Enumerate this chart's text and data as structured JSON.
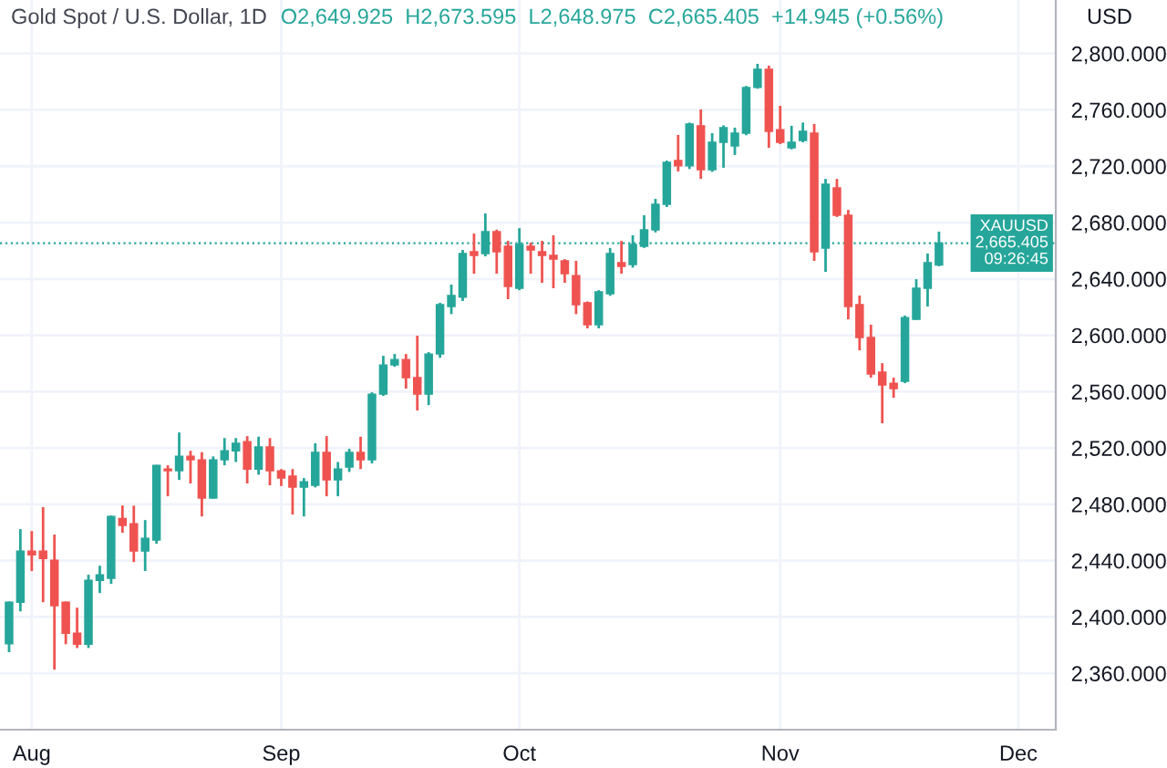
{
  "chart_data": {
    "type": "candlestick",
    "title": "Gold Spot / U.S. Dollar, 1D",
    "subtitle": "O2,649.925  H2,673.595  L2,648.975  C2,665.405  +14.945 (+0.56%)",
    "ylabel": "USD",
    "categories": [
      null,
      null,
      "Aug",
      null,
      null,
      null,
      null,
      null,
      null,
      null,
      null,
      null,
      null,
      null,
      null,
      null,
      null,
      null,
      null,
      null,
      null,
      null,
      null,
      null,
      "Sep",
      null,
      null,
      null,
      null,
      null,
      null,
      null,
      null,
      null,
      null,
      null,
      null,
      null,
      null,
      null,
      null,
      null,
      null,
      null,
      null,
      "Oct",
      null,
      null,
      null,
      null,
      null,
      null,
      null,
      null,
      null,
      null,
      null,
      null,
      null,
      null,
      null,
      null,
      null,
      null,
      null,
      null,
      null,
      null,
      "Nov",
      null,
      null,
      null,
      null,
      null,
      null,
      null,
      null,
      null,
      null,
      null,
      null,
      null,
      null,
      null,
      null,
      null,
      null,
      null,
      null,
      "Dec"
    ],
    "ohlc": [
      [
        2381,
        2411,
        2375,
        2410.5
      ],
      [
        2410.5,
        2462.4,
        2404,
        2446.8
      ],
      [
        2446.8,
        2461,
        2432.6,
        2444.2
      ],
      [
        2446.8,
        2478,
        2410.5,
        2441.6
      ],
      [
        2440.3,
        2458.5,
        2362.6,
        2408
      ],
      [
        2410.5,
        2411,
        2380.7,
        2388.5
      ],
      [
        2388.5,
        2406.6,
        2378,
        2380.7
      ],
      [
        2380.7,
        2430,
        2378,
        2426
      ],
      [
        2426,
        2436.4,
        2417,
        2430
      ],
      [
        2427.4,
        2472,
        2423.5,
        2471.4
      ],
      [
        2470,
        2479.2,
        2459.8,
        2465
      ],
      [
        2466.2,
        2479,
        2439,
        2446.8
      ],
      [
        2446.8,
        2468.8,
        2432.6,
        2455.9
      ],
      [
        2454.6,
        2508,
        2452,
        2507.7
      ],
      [
        2505.1,
        2507.7,
        2485.7,
        2503.8
      ],
      [
        2503.8,
        2531,
        2497.3,
        2514.2
      ],
      [
        2514.2,
        2518,
        2494.8,
        2511.6
      ],
      [
        2511.6,
        2517,
        2471.4,
        2484.4
      ],
      [
        2484.4,
        2514,
        2484,
        2511.6
      ],
      [
        2511.6,
        2527,
        2507.7,
        2518
      ],
      [
        2518,
        2527,
        2510,
        2523.3
      ],
      [
        2524.5,
        2528.4,
        2494.8,
        2505
      ],
      [
        2505,
        2528,
        2501,
        2520.7
      ],
      [
        2520.7,
        2527,
        2493.5,
        2503.8
      ],
      [
        2503.8,
        2505,
        2493,
        2498.6
      ],
      [
        2500,
        2505,
        2472.7,
        2492.2
      ],
      [
        2492.2,
        2498.6,
        2471.4,
        2496
      ],
      [
        2493.5,
        2523.3,
        2492,
        2516.8
      ],
      [
        2516.8,
        2528.4,
        2485.7,
        2497.3
      ],
      [
        2497.3,
        2510,
        2485.7,
        2505
      ],
      [
        2506.4,
        2519.4,
        2503,
        2516.8
      ],
      [
        2516.8,
        2528,
        2505,
        2511.6
      ],
      [
        2511.6,
        2559.5,
        2509,
        2558.2
      ],
      [
        2558.2,
        2585.4,
        2557,
        2578.9
      ],
      [
        2578.9,
        2586.7,
        2577.6,
        2582.8
      ],
      [
        2582.8,
        2586.7,
        2562.1,
        2569.9
      ],
      [
        2569.9,
        2599.7,
        2546.6,
        2558.2
      ],
      [
        2558.2,
        2588,
        2550.4,
        2586.7
      ],
      [
        2586.7,
        2623,
        2584,
        2621.7
      ],
      [
        2620.4,
        2636,
        2615,
        2628.2
      ],
      [
        2627,
        2660.6,
        2624.3,
        2658
      ],
      [
        2659.3,
        2672.2,
        2643.7,
        2656.7
      ],
      [
        2658,
        2686.5,
        2656,
        2673.5
      ],
      [
        2673.5,
        2675,
        2643.7,
        2659.3
      ],
      [
        2663.2,
        2667,
        2625.6,
        2634.7
      ],
      [
        2633.4,
        2676,
        2632,
        2664.5
      ],
      [
        2663.2,
        2665.8,
        2643.7,
        2660.6
      ],
      [
        2659.3,
        2667,
        2637.2,
        2656.7
      ],
      [
        2656.7,
        2671,
        2633.4,
        2654
      ],
      [
        2652.8,
        2654,
        2637.2,
        2643.7
      ],
      [
        2642.4,
        2652.8,
        2615,
        2621.7
      ],
      [
        2623,
        2624,
        2604.9,
        2607.5
      ],
      [
        2607.5,
        2632,
        2604.9,
        2630.8
      ],
      [
        2629.5,
        2662,
        2628,
        2658
      ],
      [
        2651.5,
        2667,
        2643.7,
        2648.9
      ],
      [
        2650.2,
        2671,
        2648,
        2664.5
      ],
      [
        2663.2,
        2685.2,
        2662,
        2674.8
      ],
      [
        2674.8,
        2696.8,
        2673,
        2693
      ],
      [
        2693,
        2724,
        2691,
        2722.8
      ],
      [
        2724,
        2742.2,
        2716.3,
        2720.2
      ],
      [
        2720.2,
        2751,
        2718,
        2750
      ],
      [
        2748.7,
        2760.3,
        2711,
        2717.6
      ],
      [
        2717.6,
        2743.5,
        2716,
        2737
      ],
      [
        2737,
        2749,
        2718.9,
        2747.4
      ],
      [
        2734.4,
        2747.4,
        2728,
        2743.5
      ],
      [
        2743.5,
        2777,
        2742,
        2775.9
      ],
      [
        2775.9,
        2792.7,
        2775,
        2788.8
      ],
      [
        2788.8,
        2791.4,
        2733.1,
        2744.8
      ],
      [
        2746,
        2762.9,
        2735.7,
        2737
      ],
      [
        2733,
        2748.7,
        2732,
        2737
      ],
      [
        2738.3,
        2751,
        2737,
        2744.8
      ],
      [
        2743.5,
        2750,
        2652.8,
        2659.3
      ],
      [
        2661.9,
        2711,
        2645,
        2707.2
      ],
      [
        2704.6,
        2711,
        2684,
        2685.2
      ],
      [
        2685.2,
        2689,
        2611.3,
        2620.4
      ],
      [
        2621.7,
        2628.2,
        2589.3,
        2598.4
      ],
      [
        2598.4,
        2607.5,
        2569.9,
        2572.5
      ],
      [
        2573.8,
        2580.2,
        2537.5,
        2564.7
      ],
      [
        2566,
        2569.9,
        2555.6,
        2562.1
      ],
      [
        2567.3,
        2614,
        2566,
        2612.6
      ],
      [
        2611.3,
        2639.8,
        2611,
        2633.4
      ],
      [
        2633.4,
        2658,
        2620.4,
        2651.5
      ],
      [
        2649.925,
        2673.595,
        2648.975,
        2665.405
      ],
      null,
      null,
      null,
      null,
      null,
      null,
      null
    ],
    "colors": [
      "#26a69a",
      "#26a69a",
      "#ef5350",
      "#ef5350",
      "#ef5350",
      "#ef5350",
      "#ef5350",
      "#26a69a",
      "#26a69a",
      "#26a69a",
      "#ef5350",
      "#ef5350",
      "#26a69a",
      "#26a69a",
      "#ef5350",
      "#26a69a",
      "#ef5350",
      "#ef5350",
      "#26a69a",
      "#26a69a",
      "#26a69a",
      "#ef5350",
      "#26a69a",
      "#ef5350",
      "#ef5350",
      "#ef5350",
      "#26a69a",
      "#26a69a",
      "#ef5350",
      "#26a69a",
      "#26a69a",
      "#ef5350",
      "#26a69a",
      "#26a69a",
      "#26a69a",
      "#ef5350",
      "#ef5350",
      "#26a69a",
      "#26a69a",
      "#26a69a",
      "#26a69a",
      "#ef5350",
      "#26a69a",
      "#ef5350",
      "#ef5350",
      "#26a69a",
      "#ef5350",
      "#ef5350",
      "#ef5350",
      "#ef5350",
      "#ef5350",
      "#ef5350",
      "#26a69a",
      "#26a69a",
      "#ef5350",
      "#26a69a",
      "#26a69a",
      "#26a69a",
      "#26a69a",
      "#ef5350",
      "#26a69a",
      "#ef5350",
      "#26a69a",
      "#26a69a",
      "#26a69a",
      "#26a69a",
      "#26a69a",
      "#ef5350",
      "#ef5350",
      "#26a69a",
      "#26a69a",
      "#ef5350",
      "#26a69a",
      "#ef5350",
      "#ef5350",
      "#ef5350",
      "#ef5350",
      "#ef5350",
      "#ef5350",
      "#26a69a",
      "#26a69a",
      "#26a69a",
      "#26a69a",
      null,
      null,
      null,
      null,
      null,
      null,
      null
    ],
    "ylim": [
      2320,
      2838
    ],
    "yticks": [
      {
        "value": 2360,
        "label": "2,360.000"
      },
      {
        "value": 2400,
        "label": "2,400.000"
      },
      {
        "value": 2440,
        "label": "2,440.000"
      },
      {
        "value": 2480,
        "label": "2,480.000"
      },
      {
        "value": 2520,
        "label": "2,520.000"
      },
      {
        "value": 2560,
        "label": "2,560.000"
      },
      {
        "value": 2600,
        "label": "2,600.000"
      },
      {
        "value": 2640,
        "label": "2,640.000"
      },
      {
        "value": 2680,
        "label": "2,680.000"
      },
      {
        "value": 2720,
        "label": "2,720.000"
      },
      {
        "value": 2760,
        "label": "2,760.000"
      },
      {
        "value": 2800,
        "label": "2,800.000"
      }
    ],
    "ref_lines": [
      {
        "axis": "y",
        "value": 2665.405,
        "label": "XAUUSD\n2,665.405\n09:26:45",
        "color": "#26a69a",
        "line_style": "dotted"
      }
    ],
    "grid": true
  }
}
